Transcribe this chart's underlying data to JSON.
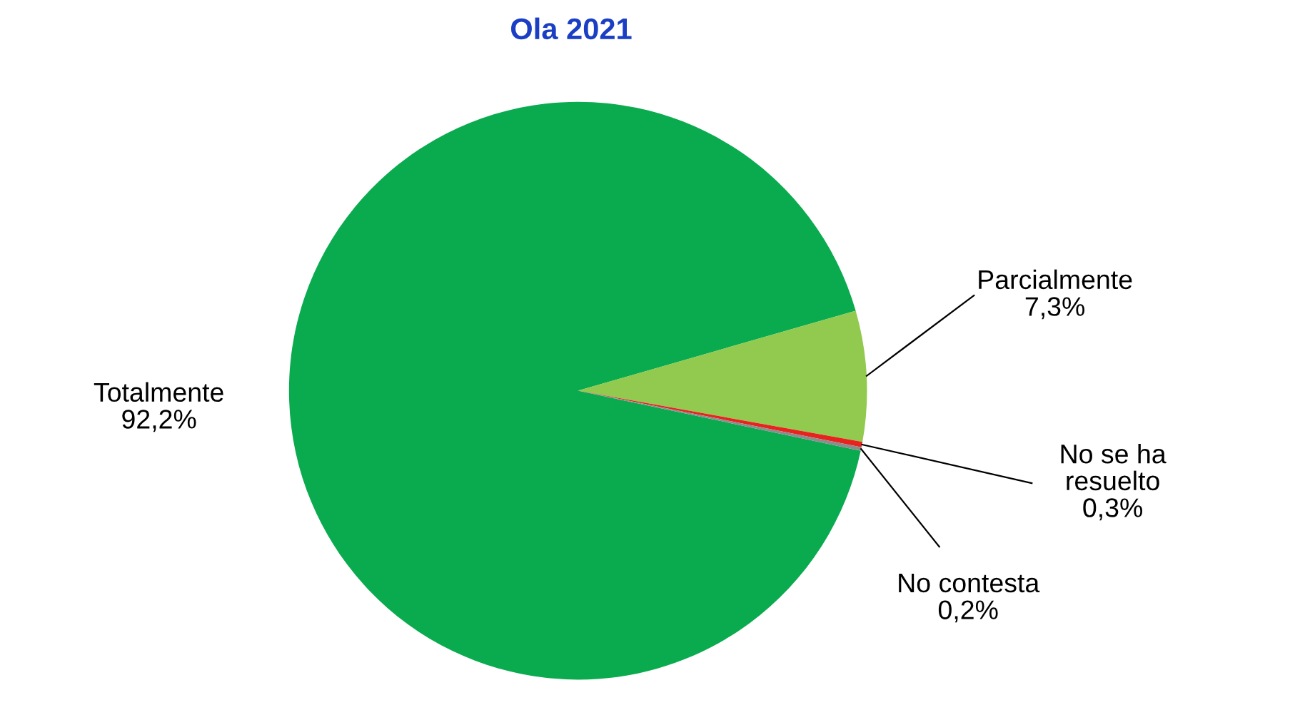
{
  "chart_data": {
    "type": "pie",
    "title": "Ola 2021",
    "categories": [
      "Totalmente",
      "Parcialmente",
      "No se ha resuelto",
      "No contesta"
    ],
    "values": [
      92.2,
      7.3,
      0.3,
      0.2
    ],
    "value_labels": [
      "92,2%",
      "7,3%",
      "0,3%",
      "0,2%"
    ],
    "colors": [
      "#0aab4f",
      "#92c94f",
      "#e8231d",
      "#8c8c8c"
    ],
    "legend": false
  }
}
